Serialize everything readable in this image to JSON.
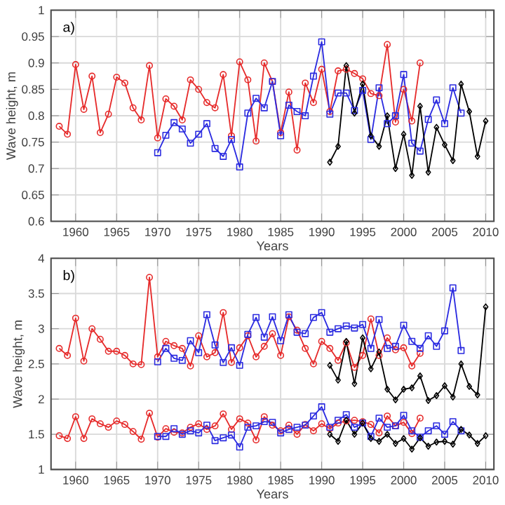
{
  "chart_data": [
    {
      "type": "line",
      "xlabel": "Years",
      "ylabel": "Wave height, m",
      "annotations": [
        "a)"
      ],
      "xlim": [
        1957,
        2011
      ],
      "ylim": [
        0.6,
        1
      ],
      "xticks": [
        1960,
        1965,
        1970,
        1975,
        1980,
        1985,
        1990,
        1995,
        2000,
        2005,
        2010
      ],
      "yticks": [
        0.6,
        0.65,
        0.7,
        0.75,
        0.8,
        0.85,
        0.9,
        0.95,
        1
      ],
      "grid": true,
      "line_style": "solid",
      "series": [
        {
          "color": "#e62a2a",
          "marker": "circle",
          "x": [
            1958,
            1959,
            1960,
            1961,
            1962,
            1963,
            1964,
            1965,
            1966,
            1967,
            1968,
            1969,
            1970,
            1971,
            1972,
            1973,
            1974,
            1975,
            1976,
            1977,
            1978,
            1979,
            1980,
            1981,
            1982,
            1983,
            1984,
            1985,
            1986,
            1987,
            1988,
            1989,
            1990,
            1991,
            1992,
            1993,
            1994,
            1995,
            1996,
            1997,
            1998,
            1999,
            2000,
            2001,
            2002
          ],
          "values": [
            0.78,
            0.765,
            0.897,
            0.812,
            0.875,
            0.768,
            0.803,
            0.873,
            0.862,
            0.815,
            0.792,
            0.895,
            0.758,
            0.832,
            0.818,
            0.792,
            0.868,
            0.85,
            0.825,
            0.815,
            0.878,
            0.762,
            0.902,
            0.868,
            0.752,
            0.9,
            0.865,
            0.768,
            0.845,
            0.735,
            0.862,
            0.825,
            0.888,
            0.808,
            0.885,
            0.888,
            0.88,
            0.87,
            0.842,
            0.838,
            0.935,
            0.788,
            0.85,
            0.79,
            0.9
          ]
        },
        {
          "color": "#2a2ae0",
          "marker": "square",
          "x": [
            1970,
            1971,
            1972,
            1973,
            1974,
            1975,
            1976,
            1977,
            1978,
            1979,
            1980,
            1981,
            1982,
            1983,
            1984,
            1985,
            1986,
            1987,
            1988,
            1989,
            1990,
            1991,
            1992,
            1993,
            1994,
            1995,
            1996,
            1997,
            1998,
            1999,
            2000,
            2001,
            2002,
            2003,
            2004,
            2005,
            2006,
            2007
          ],
          "values": [
            0.73,
            0.763,
            0.787,
            0.775,
            0.748,
            0.765,
            0.785,
            0.738,
            0.723,
            0.755,
            0.703,
            0.805,
            0.833,
            0.815,
            0.865,
            0.762,
            0.82,
            0.808,
            0.8,
            0.875,
            0.94,
            0.803,
            0.843,
            0.843,
            0.81,
            0.848,
            0.755,
            0.853,
            0.785,
            0.8,
            0.878,
            0.748,
            0.733,
            0.793,
            0.83,
            0.785,
            0.853,
            0.805
          ]
        },
        {
          "color": "#000000",
          "marker": "diamond",
          "x": [
            1991,
            1992,
            1993,
            1994,
            1995,
            1996,
            1997,
            1998,
            1999,
            2000,
            2001,
            2002,
            2003,
            2004,
            2005,
            2006,
            2007,
            2008,
            2009,
            2010
          ],
          "values": [
            0.712,
            0.742,
            0.895,
            0.805,
            0.86,
            0.762,
            0.742,
            0.8,
            0.7,
            0.765,
            0.687,
            0.818,
            0.693,
            0.778,
            0.745,
            0.715,
            0.86,
            0.808,
            0.723,
            0.79
          ]
        }
      ]
    },
    {
      "type": "line",
      "xlabel": "Years",
      "ylabel": "Wave height, m",
      "annotations": [
        "b)"
      ],
      "xlim": [
        1957,
        2011
      ],
      "ylim": [
        1,
        4
      ],
      "xticks": [
        1960,
        1965,
        1970,
        1975,
        1980,
        1985,
        1990,
        1995,
        2000,
        2005,
        2010
      ],
      "yticks": [
        1,
        1.5,
        2,
        2.5,
        3,
        3.5,
        4
      ],
      "grid": true,
      "line_style": "solid",
      "series": [
        {
          "color": "#e62a2a",
          "marker": "circle",
          "x": [
            1958,
            1959,
            1960,
            1961,
            1962,
            1963,
            1964,
            1965,
            1966,
            1967,
            1968,
            1969,
            1970,
            1971,
            1972,
            1973,
            1974,
            1975,
            1976,
            1977,
            1978,
            1979,
            1980,
            1981,
            1982,
            1983,
            1984,
            1985,
            1986,
            1987,
            1988,
            1989,
            1990,
            1991,
            1992,
            1993,
            1994,
            1995,
            1996,
            1997,
            1998,
            1999,
            2000,
            2001,
            2002
          ],
          "values": [
            2.72,
            2.62,
            3.15,
            2.54,
            3.0,
            2.85,
            2.68,
            2.68,
            2.62,
            2.5,
            2.49,
            3.73,
            2.6,
            2.82,
            2.76,
            2.72,
            2.47,
            2.9,
            2.6,
            2.66,
            3.23,
            2.52,
            2.73,
            2.9,
            2.6,
            2.75,
            2.93,
            2.62,
            3.17,
            2.98,
            2.72,
            2.5,
            2.82,
            2.72,
            2.55,
            2.8,
            2.45,
            2.62,
            3.14,
            2.62,
            2.87,
            2.7,
            2.73,
            2.47,
            2.65
          ]
        },
        {
          "color": "#2a2ae0",
          "marker": "square",
          "x": [
            1970,
            1971,
            1972,
            1973,
            1974,
            1975,
            1976,
            1977,
            1978,
            1979,
            1980,
            1981,
            1982,
            1983,
            1984,
            1985,
            1986,
            1987,
            1988,
            1989,
            1990,
            1991,
            1992,
            1993,
            1994,
            1995,
            1996,
            1997,
            1998,
            1999,
            2000,
            2001,
            2002,
            2003,
            2004,
            2005,
            2006,
            2007
          ],
          "values": [
            2.53,
            2.72,
            2.58,
            2.55,
            2.83,
            2.66,
            3.2,
            2.77,
            2.52,
            2.73,
            2.48,
            2.92,
            3.16,
            2.88,
            3.17,
            2.83,
            3.2,
            2.95,
            2.93,
            3.16,
            3.23,
            2.95,
            3.0,
            3.04,
            3.01,
            3.06,
            2.72,
            3.13,
            2.72,
            2.75,
            3.05,
            2.82,
            2.72,
            2.9,
            2.75,
            2.97,
            3.58,
            2.69
          ]
        },
        {
          "color": "#000000",
          "marker": "diamond",
          "x": [
            1991,
            1992,
            1993,
            1994,
            1995,
            1996,
            1997,
            1998,
            1999,
            2000,
            2001,
            2002,
            2003,
            2004,
            2005,
            2006,
            2007,
            2008,
            2009,
            2010
          ],
          "values": [
            2.48,
            2.27,
            2.82,
            2.22,
            2.87,
            2.43,
            2.67,
            2.14,
            1.99,
            2.14,
            2.16,
            2.33,
            1.98,
            2.05,
            2.19,
            2.03,
            2.5,
            2.18,
            2.06,
            3.31
          ]
        },
        {
          "color": "#e62a2a",
          "marker": "circle",
          "x": [
            1958,
            1959,
            1960,
            1961,
            1962,
            1963,
            1964,
            1965,
            1966,
            1967,
            1968,
            1969,
            1970,
            1971,
            1972,
            1973,
            1974,
            1975,
            1976,
            1977,
            1978,
            1979,
            1980,
            1981,
            1982,
            1983,
            1984,
            1985,
            1986,
            1987,
            1988,
            1989,
            1990,
            1991,
            1992,
            1993,
            1994,
            1995,
            1996,
            1997,
            1998,
            1999,
            2000,
            2001,
            2002
          ],
          "values": [
            1.48,
            1.44,
            1.75,
            1.44,
            1.72,
            1.65,
            1.6,
            1.69,
            1.64,
            1.54,
            1.43,
            1.8,
            1.46,
            1.58,
            1.53,
            1.52,
            1.6,
            1.65,
            1.57,
            1.62,
            1.79,
            1.57,
            1.72,
            1.66,
            1.42,
            1.75,
            1.63,
            1.55,
            1.63,
            1.5,
            1.64,
            1.55,
            1.65,
            1.58,
            1.66,
            1.69,
            1.7,
            1.68,
            1.64,
            1.52,
            1.76,
            1.62,
            1.67,
            1.51,
            1.73
          ]
        },
        {
          "color": "#2a2ae0",
          "marker": "square",
          "x": [
            1970,
            1971,
            1972,
            1973,
            1974,
            1975,
            1976,
            1977,
            1978,
            1979,
            1980,
            1981,
            1982,
            1983,
            1984,
            1985,
            1986,
            1987,
            1988,
            1989,
            1990,
            1991,
            1992,
            1993,
            1994,
            1995,
            1996,
            1997,
            1998,
            1999,
            2000,
            2001,
            2002,
            2003,
            2004,
            2005,
            2006,
            2007
          ],
          "values": [
            1.47,
            1.47,
            1.58,
            1.5,
            1.55,
            1.52,
            1.63,
            1.41,
            1.45,
            1.49,
            1.32,
            1.6,
            1.62,
            1.68,
            1.67,
            1.52,
            1.57,
            1.6,
            1.63,
            1.76,
            1.89,
            1.6,
            1.7,
            1.78,
            1.6,
            1.66,
            1.47,
            1.73,
            1.6,
            1.62,
            1.77,
            1.55,
            1.46,
            1.55,
            1.62,
            1.5,
            1.68,
            1.55
          ]
        },
        {
          "color": "#000000",
          "marker": "diamond",
          "x": [
            1991,
            1992,
            1993,
            1994,
            1995,
            1996,
            1997,
            1998,
            1999,
            2000,
            2001,
            2002,
            2003,
            2004,
            2005,
            2006,
            2007,
            2008,
            2009,
            2010
          ],
          "values": [
            1.5,
            1.4,
            1.7,
            1.5,
            1.66,
            1.44,
            1.4,
            1.5,
            1.37,
            1.44,
            1.29,
            1.45,
            1.33,
            1.39,
            1.4,
            1.36,
            1.57,
            1.49,
            1.37,
            1.48
          ]
        }
      ]
    }
  ]
}
